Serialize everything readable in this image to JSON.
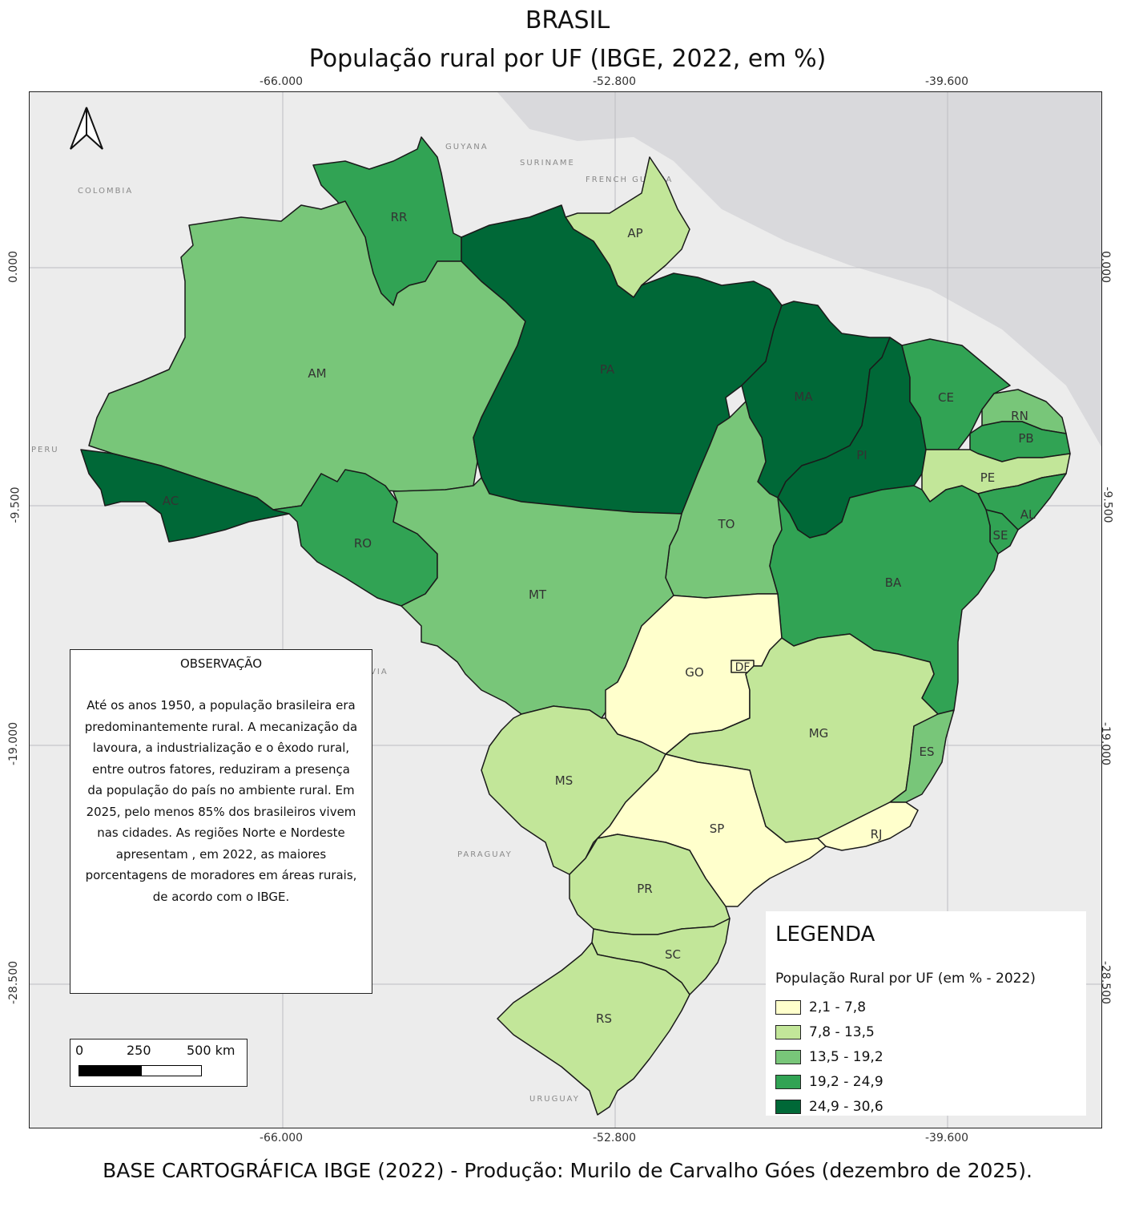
{
  "title": "BRASIL",
  "subtitle": "População rural por UF (IBGE, 2022, em %)",
  "longitude_ticks": [
    "-66.000",
    "-52.800",
    "-39.600"
  ],
  "latitude_ticks": [
    "0.000",
    "-9.500",
    "-19.000",
    "-28.500"
  ],
  "countries": [
    "COLOMBIA",
    "GUYANA",
    "SURINAME",
    "FRENCH GUIANA",
    "PERU",
    "BOLIVIA",
    "PARAGUAY",
    "URUGUAY"
  ],
  "states": [
    {
      "uf": "RR",
      "class": 3
    },
    {
      "uf": "AP",
      "class": 1
    },
    {
      "uf": "AM",
      "class": 2
    },
    {
      "uf": "PA",
      "class": 4
    },
    {
      "uf": "MA",
      "class": 4
    },
    {
      "uf": "PI",
      "class": 4
    },
    {
      "uf": "CE",
      "class": 3
    },
    {
      "uf": "RN",
      "class": 2
    },
    {
      "uf": "PB",
      "class": 3
    },
    {
      "uf": "PE",
      "class": 1
    },
    {
      "uf": "AL",
      "class": 3
    },
    {
      "uf": "SE",
      "class": 3
    },
    {
      "uf": "AC",
      "class": 4
    },
    {
      "uf": "RO",
      "class": 3
    },
    {
      "uf": "TO",
      "class": 2
    },
    {
      "uf": "BA",
      "class": 3
    },
    {
      "uf": "MT",
      "class": 2
    },
    {
      "uf": "GO",
      "class": 0
    },
    {
      "uf": "DF",
      "class": 0
    },
    {
      "uf": "MG",
      "class": 1
    },
    {
      "uf": "ES",
      "class": 2
    },
    {
      "uf": "MS",
      "class": 1
    },
    {
      "uf": "SP",
      "class": 0
    },
    {
      "uf": "RJ",
      "class": 0
    },
    {
      "uf": "PR",
      "class": 1
    },
    {
      "uf": "SC",
      "class": 1
    },
    {
      "uf": "RS",
      "class": 1
    }
  ],
  "observation": {
    "title": "OBSERVAÇÃO",
    "text": "Até os anos 1950, a população brasileira era predominantemente rural. A mecanização da lavoura, a industrialização e o êxodo rural, entre outros fatores, reduziram a presença da população do país no ambiente rural. Em 2025, pelo menos 85% dos brasileiros vivem nas cidades. As regiões Norte e Nordeste apresentam , em 2022, as maiores porcentagens de moradores em áreas rurais, de acordo com o IBGE."
  },
  "legend": {
    "title": "LEGENDA",
    "subtitle": "População Rural por UF (em % - 2022)",
    "classes": [
      {
        "label": "2,1 - 7,8",
        "color": "#ffffcc"
      },
      {
        "label": "7,8 - 13,5",
        "color": "#c2e699"
      },
      {
        "label": "13,5 - 19,2",
        "color": "#78c679"
      },
      {
        "label": "19,2 - 24,9",
        "color": "#31a354"
      },
      {
        "label": "24,9 - 30,6",
        "color": "#006837"
      }
    ]
  },
  "scale_bar": {
    "labels": [
      "0",
      "250",
      "500 km"
    ]
  },
  "footer": "BASE CARTOGRÁFICA IBGE (2022) - Produção: Murilo de Carvalho Góes (dezembro de 2025)."
}
